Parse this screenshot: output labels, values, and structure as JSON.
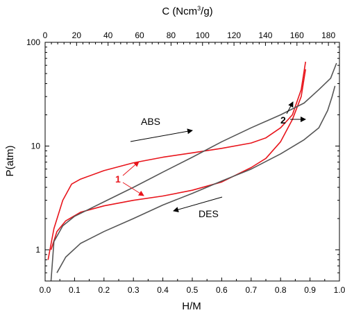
{
  "chart_data": {
    "type": "line",
    "xlabel": "H/M",
    "ylabel": "P(atm)",
    "top_xlabel": {
      "pre": "C (Ncm",
      "sup": "3",
      "post": "/g)"
    },
    "xlim": [
      0.0,
      1.0
    ],
    "ylim": [
      0.5,
      100
    ],
    "y_scale": "log",
    "top_xlim": [
      0,
      187
    ],
    "x_ticks": [
      "0.0",
      "0.1",
      "0.2",
      "0.3",
      "0.4",
      "0.5",
      "0.6",
      "0.7",
      "0.8",
      "0.9",
      "1.0"
    ],
    "x_tick_values": [
      0.0,
      0.1,
      0.2,
      0.3,
      0.4,
      0.5,
      0.6,
      0.7,
      0.8,
      0.9,
      1.0
    ],
    "top_ticks": [
      "0",
      "20",
      "40",
      "60",
      "80",
      "100",
      "120",
      "140",
      "160",
      "180"
    ],
    "top_tick_values": [
      0,
      20,
      40,
      60,
      80,
      100,
      120,
      140,
      160,
      180
    ],
    "y_ticks": [
      "1",
      "10",
      "100"
    ],
    "y_tick_values": [
      1,
      10,
      100
    ],
    "grid": false,
    "series": [
      {
        "color": "#e8141b",
        "points": [
          [
            0.01,
            0.8
          ],
          [
            0.03,
            1.6
          ],
          [
            0.06,
            3.0
          ],
          [
            0.09,
            4.3
          ],
          [
            0.12,
            4.8
          ],
          [
            0.2,
            5.8
          ],
          [
            0.3,
            6.9
          ],
          [
            0.4,
            7.8
          ],
          [
            0.5,
            8.6
          ],
          [
            0.6,
            9.5
          ],
          [
            0.7,
            10.7
          ],
          [
            0.75,
            12.0
          ],
          [
            0.8,
            15.0
          ],
          [
            0.84,
            20.0
          ],
          [
            0.87,
            35.0
          ],
          [
            0.885,
            65.0
          ]
        ]
      },
      {
        "color": "#e8141b",
        "points": [
          [
            0.02,
            1.0
          ],
          [
            0.04,
            1.5
          ],
          [
            0.07,
            1.9
          ],
          [
            0.12,
            2.3
          ],
          [
            0.2,
            2.65
          ],
          [
            0.3,
            3.0
          ],
          [
            0.4,
            3.3
          ],
          [
            0.5,
            3.75
          ],
          [
            0.6,
            4.5
          ],
          [
            0.7,
            6.2
          ],
          [
            0.75,
            7.6
          ],
          [
            0.8,
            11.0
          ],
          [
            0.84,
            18.0
          ],
          [
            0.87,
            30.0
          ],
          [
            0.885,
            55.0
          ]
        ]
      },
      {
        "color": "#555555",
        "points": [
          [
            0.02,
            0.5
          ],
          [
            0.03,
            1.2
          ],
          [
            0.06,
            1.7
          ],
          [
            0.1,
            2.1
          ],
          [
            0.2,
            2.9
          ],
          [
            0.3,
            4.0
          ],
          [
            0.4,
            5.6
          ],
          [
            0.5,
            7.8
          ],
          [
            0.6,
            11.0
          ],
          [
            0.7,
            15.0
          ],
          [
            0.8,
            20.0
          ],
          [
            0.88,
            26.0
          ],
          [
            0.93,
            35.0
          ],
          [
            0.97,
            45.0
          ],
          [
            0.99,
            63.0
          ]
        ]
      },
      {
        "color": "#555555",
        "points": [
          [
            0.04,
            0.6
          ],
          [
            0.07,
            0.85
          ],
          [
            0.12,
            1.15
          ],
          [
            0.2,
            1.5
          ],
          [
            0.3,
            2.0
          ],
          [
            0.4,
            2.7
          ],
          [
            0.5,
            3.5
          ],
          [
            0.6,
            4.6
          ],
          [
            0.7,
            6.0
          ],
          [
            0.8,
            8.4
          ],
          [
            0.88,
            11.5
          ],
          [
            0.93,
            15.0
          ],
          [
            0.96,
            22.0
          ],
          [
            0.975,
            30.0
          ],
          [
            0.985,
            38.0
          ]
        ]
      }
    ],
    "annotations": {
      "abs_label": "ABS",
      "des_label": "DES",
      "label_1": "1",
      "label_2": "2"
    }
  },
  "colors": {
    "red": "#e8141b",
    "gray": "#555555",
    "axis": "#000000"
  }
}
